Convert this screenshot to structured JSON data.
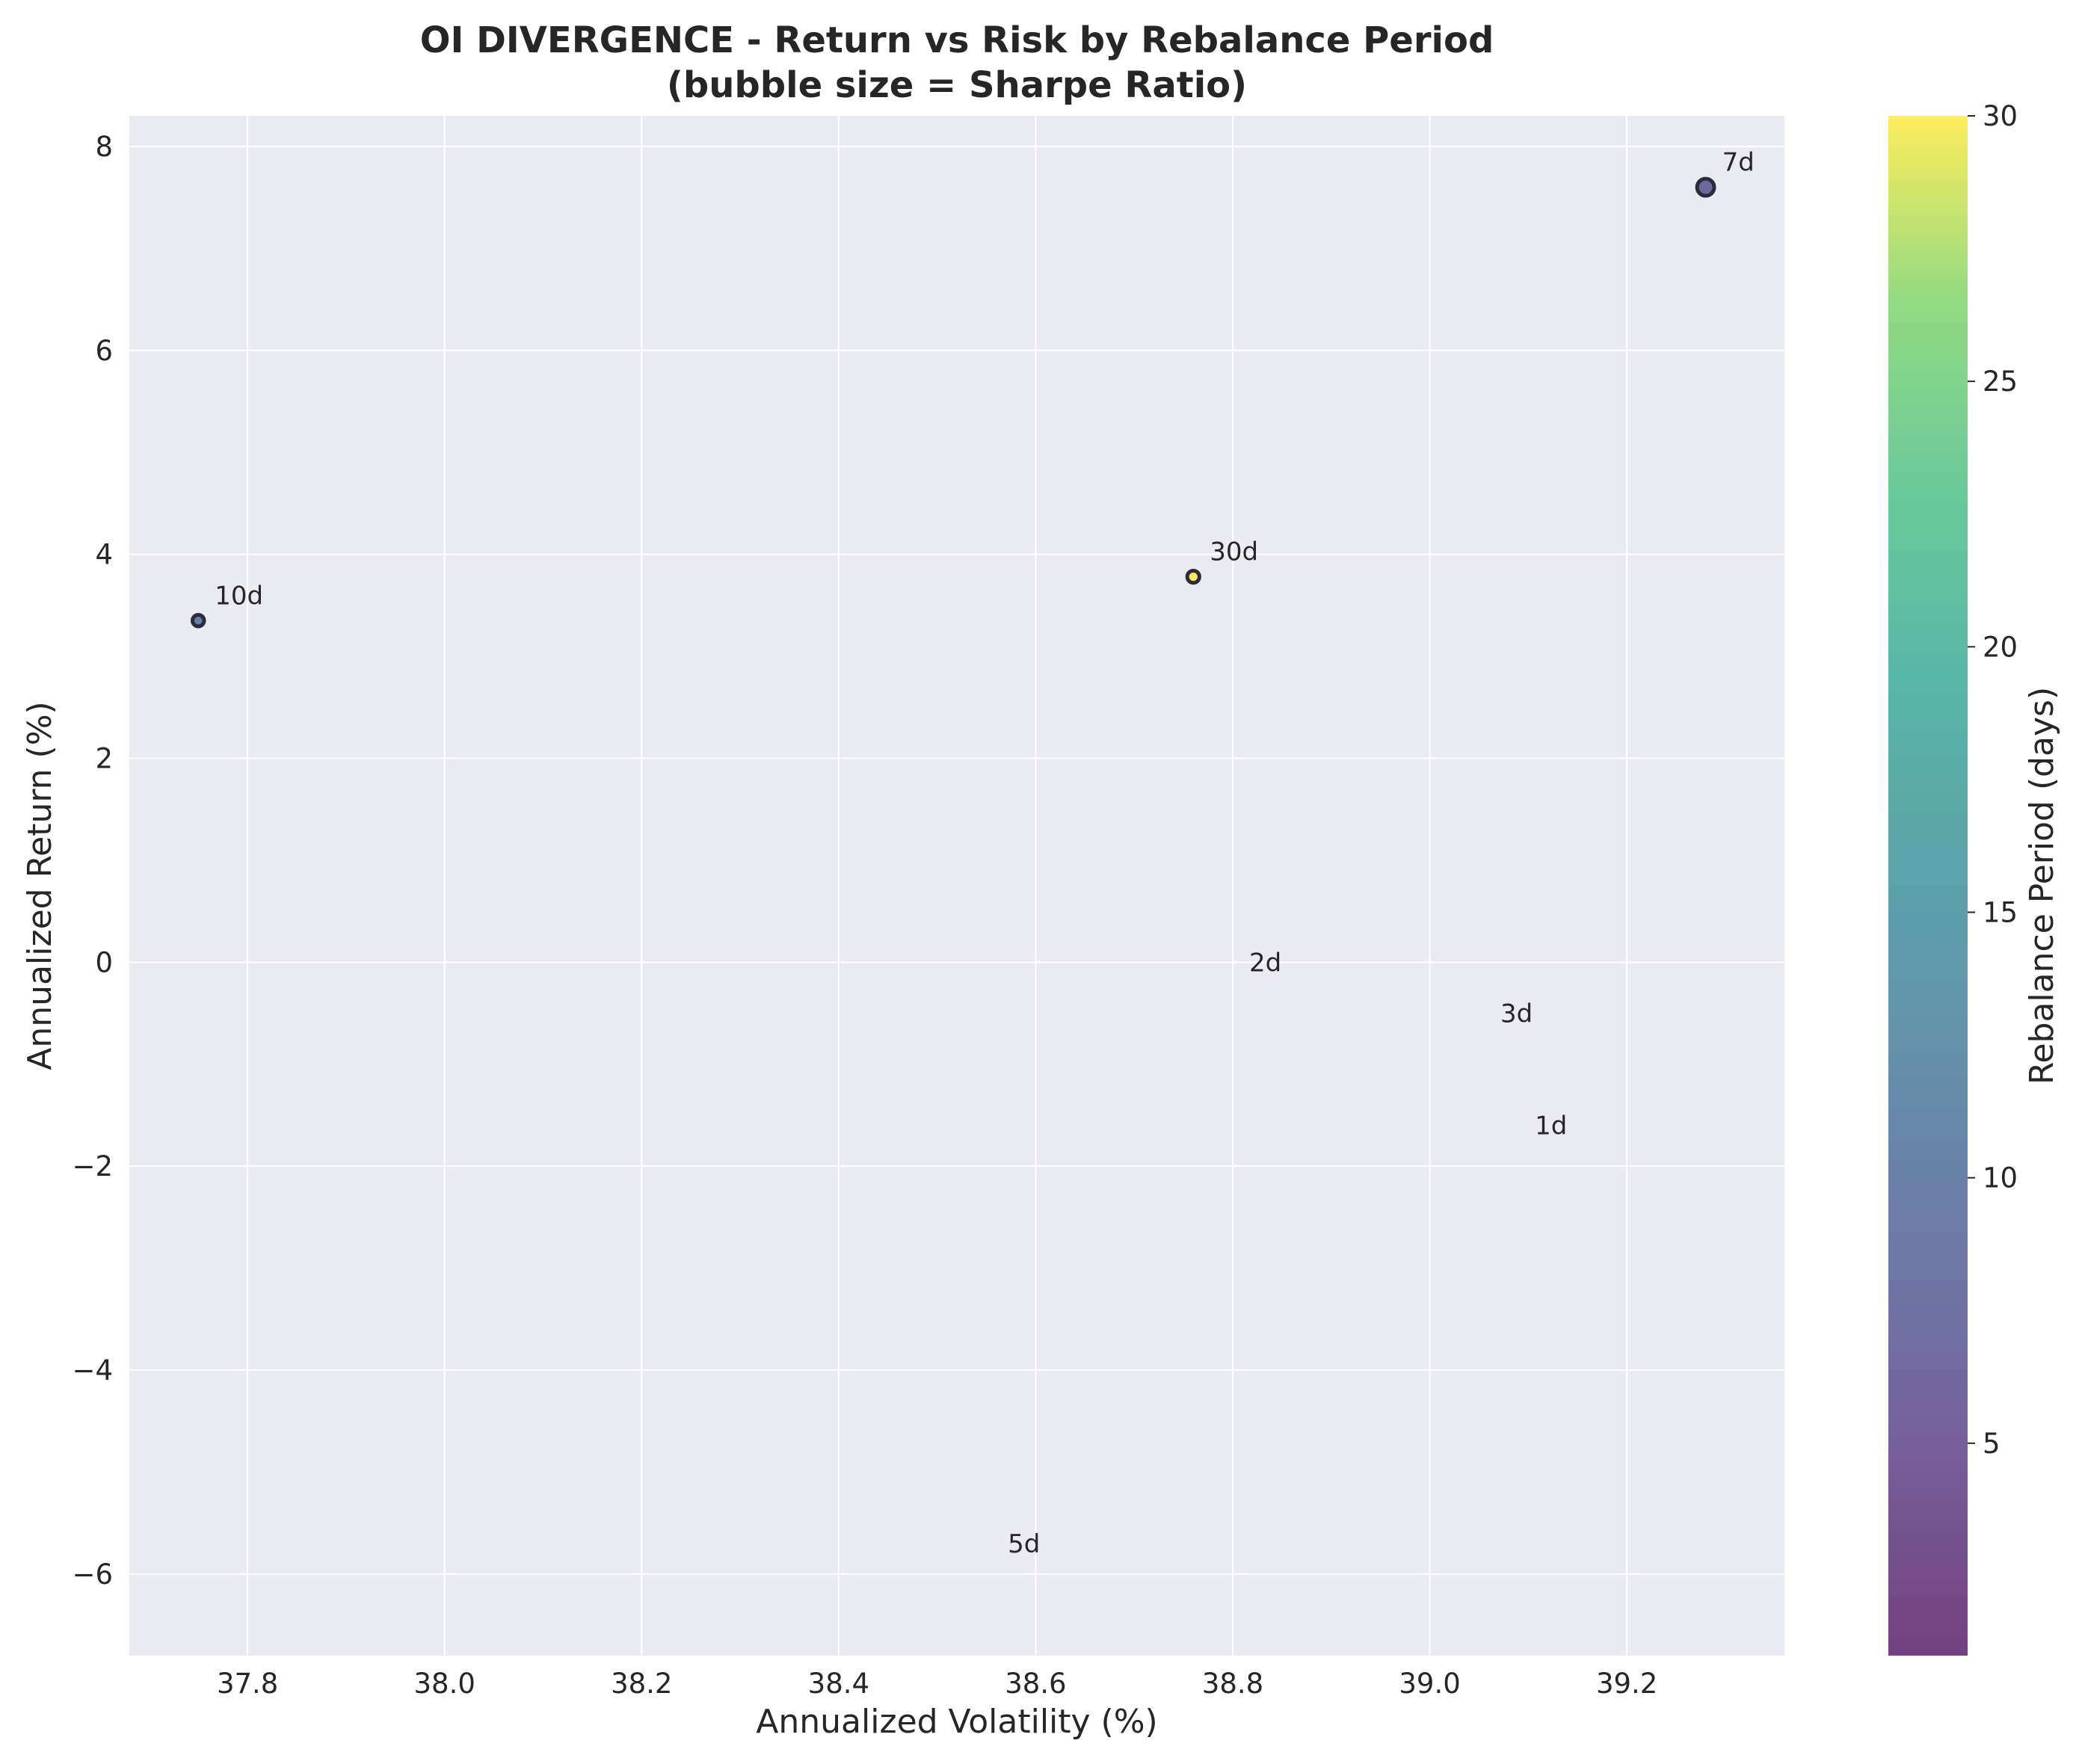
{
  "chart_data": {
    "type": "scatter",
    "title_line1": "OI DIVERGENCE - Return vs Risk by Rebalance Period",
    "title_line2": "(bubble size = Sharpe Ratio)",
    "xlabel": "Annualized Volatility (%)",
    "ylabel": "Annualized Return (%)",
    "xlim": [
      37.68,
      39.36
    ],
    "ylim": [
      -6.8,
      8.3
    ],
    "xticks": [
      37.8,
      38.0,
      38.2,
      38.4,
      38.6,
      38.8,
      39.0,
      39.2
    ],
    "xtick_labels": [
      "37.8",
      "38.0",
      "38.2",
      "38.4",
      "38.6",
      "38.8",
      "39.0",
      "39.2"
    ],
    "yticks": [
      -6,
      -4,
      -2,
      0,
      2,
      4,
      6,
      8
    ],
    "ytick_labels": [
      "−6",
      "−4",
      "−2",
      "0",
      "2",
      "4",
      "6",
      "8"
    ],
    "grid": true,
    "points": [
      {
        "label": "1d",
        "period": 1,
        "x": 39.09,
        "y": -1.85,
        "sharpe": -0.047
      },
      {
        "label": "2d",
        "period": 2,
        "x": 38.8,
        "y": -0.25,
        "sharpe": -0.006
      },
      {
        "label": "3d",
        "period": 3,
        "x": 39.055,
        "y": -0.75,
        "sharpe": -0.019
      },
      {
        "label": "5d",
        "period": 5,
        "x": 38.555,
        "y": -5.95,
        "sharpe": -0.154
      },
      {
        "label": "7d",
        "period": 7,
        "x": 39.28,
        "y": 7.6,
        "sharpe": 0.193
      },
      {
        "label": "10d",
        "period": 10,
        "x": 37.75,
        "y": 3.35,
        "sharpe": 0.089
      },
      {
        "label": "30d",
        "period": 30,
        "x": 38.76,
        "y": 3.78,
        "sharpe": 0.098
      }
    ],
    "colorbar": {
      "label": "Rebalance Period (days)",
      "range": [
        1,
        30
      ],
      "ticks": [
        5,
        10,
        15,
        20,
        25,
        30
      ],
      "tick_labels": [
        "5",
        "10",
        "15",
        "20",
        "25",
        "30"
      ],
      "colormap": "viridis"
    },
    "colors": {
      "plot_background": "#eaeaf2",
      "grid": "#ffffff",
      "marker_edge": "#2b2b3a"
    }
  }
}
